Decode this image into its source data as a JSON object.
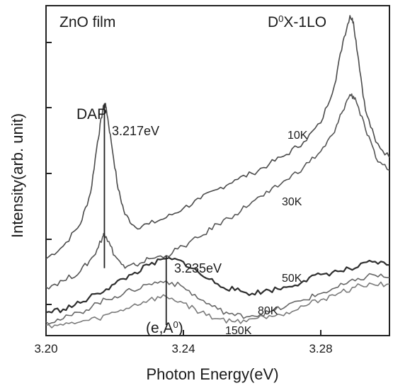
{
  "chart_data": {
    "type": "line",
    "title": "",
    "xlabel": "Photon Energy(eV)",
    "ylabel": "Intensity(arb. unit)",
    "xlim": [
      3.2,
      3.3
    ],
    "ylim": [
      0,
      1
    ],
    "x_ticks": [
      "3.20",
      "3.24",
      "3.28"
    ],
    "x_tick_values": [
      3.2,
      3.24,
      3.28
    ],
    "y_tick_labels_shown": false,
    "grid": false,
    "legend": "none",
    "annotations": {
      "sample": "ZnO film",
      "dap": "DAP",
      "dap_energy": "3.217eV",
      "eA_energy": "3.235eV",
      "eA_label": "(e,A",
      "eA_sup": "0",
      "eA_close": ")",
      "d0x_prefix": "D",
      "d0x_sup": "0",
      "d0x_suffix": "X-1LO"
    },
    "marker_lines": [
      {
        "x": 3.217,
        "y_top": 0.72,
        "y_bottom": 0.2
      },
      {
        "x": 3.235,
        "y_top": 0.24,
        "y_bottom": 0.02
      }
    ],
    "series": [
      {
        "name": "10K",
        "color": "#4a4a4a",
        "x": [
          3.2,
          3.205,
          3.21,
          3.213,
          3.215,
          3.2165,
          3.217,
          3.2175,
          3.219,
          3.221,
          3.223,
          3.226,
          3.23,
          3.235,
          3.24,
          3.245,
          3.25,
          3.255,
          3.26,
          3.265,
          3.27,
          3.275,
          3.28,
          3.284,
          3.2865,
          3.2885,
          3.2895,
          3.291,
          3.293,
          3.296,
          3.3
        ],
        "y": [
          0.23,
          0.27,
          0.34,
          0.44,
          0.6,
          0.7,
          0.72,
          0.71,
          0.6,
          0.45,
          0.37,
          0.33,
          0.34,
          0.36,
          0.39,
          0.42,
          0.45,
          0.48,
          0.5,
          0.53,
          0.56,
          0.6,
          0.66,
          0.78,
          0.92,
          1.0,
          0.98,
          0.86,
          0.7,
          0.6,
          0.55
        ]
      },
      {
        "name": "30K",
        "color": "#555555",
        "x": [
          3.2,
          3.205,
          3.21,
          3.214,
          3.2165,
          3.217,
          3.2175,
          3.22,
          3.223,
          3.226,
          3.23,
          3.235,
          3.24,
          3.245,
          3.25,
          3.255,
          3.26,
          3.265,
          3.27,
          3.275,
          3.28,
          3.284,
          3.286,
          3.2885,
          3.29,
          3.293,
          3.296,
          3.3
        ],
        "y": [
          0.14,
          0.16,
          0.19,
          0.24,
          0.3,
          0.31,
          0.3,
          0.24,
          0.2,
          0.21,
          0.23,
          0.24,
          0.27,
          0.3,
          0.34,
          0.37,
          0.41,
          0.44,
          0.48,
          0.52,
          0.57,
          0.63,
          0.69,
          0.75,
          0.74,
          0.64,
          0.55,
          0.51
        ]
      },
      {
        "name": "50K",
        "color": "#2e2e2e",
        "x": [
          3.2,
          3.205,
          3.21,
          3.215,
          3.22,
          3.225,
          3.23,
          3.235,
          3.24,
          3.245,
          3.25,
          3.255,
          3.26,
          3.265,
          3.27,
          3.275,
          3.28,
          3.285,
          3.29,
          3.295,
          3.3
        ],
        "y": [
          0.06,
          0.07,
          0.09,
          0.12,
          0.15,
          0.18,
          0.21,
          0.23,
          0.22,
          0.18,
          0.15,
          0.13,
          0.12,
          0.13,
          0.14,
          0.16,
          0.18,
          0.19,
          0.2,
          0.22,
          0.21
        ]
      },
      {
        "name": "80K",
        "color": "#666666",
        "x": [
          3.2,
          3.205,
          3.21,
          3.215,
          3.22,
          3.225,
          3.23,
          3.235,
          3.24,
          3.245,
          3.25,
          3.255,
          3.26,
          3.265,
          3.27,
          3.275,
          3.28,
          3.285,
          3.29,
          3.295,
          3.3
        ],
        "y": [
          0.03,
          0.04,
          0.06,
          0.09,
          0.11,
          0.13,
          0.15,
          0.16,
          0.14,
          0.1,
          0.07,
          0.05,
          0.05,
          0.06,
          0.08,
          0.1,
          0.12,
          0.14,
          0.16,
          0.18,
          0.17
        ]
      },
      {
        "name": "150K",
        "color": "#7a7a7a",
        "x": [
          3.2,
          3.205,
          3.21,
          3.215,
          3.22,
          3.225,
          3.23,
          3.235,
          3.24,
          3.245,
          3.25,
          3.255,
          3.26,
          3.265,
          3.27,
          3.275,
          3.28,
          3.285,
          3.29,
          3.295,
          3.3
        ],
        "y": [
          0.02,
          0.02,
          0.03,
          0.04,
          0.06,
          0.08,
          0.1,
          0.11,
          0.09,
          0.06,
          0.04,
          0.03,
          0.04,
          0.05,
          0.06,
          0.08,
          0.1,
          0.12,
          0.14,
          0.15,
          0.15
        ]
      }
    ]
  }
}
